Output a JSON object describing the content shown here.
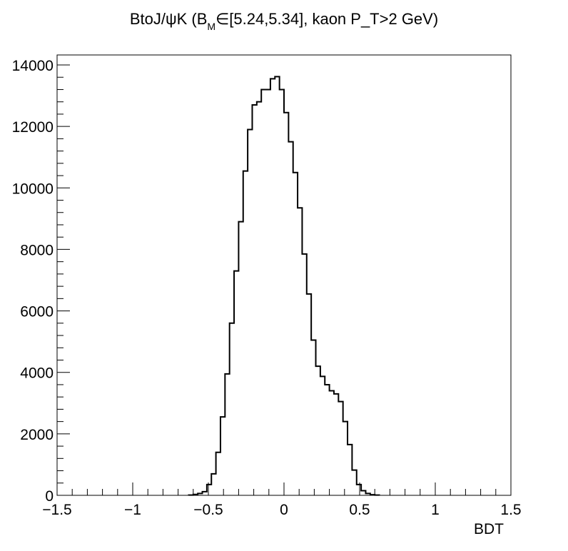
{
  "title": {
    "prefix": "BtoJ/ψK (B",
    "subscript": "M",
    "suffix": "∈[5.24,5.34], kaon P_T>2 GeV)"
  },
  "chart_data": {
    "type": "histogram",
    "title": "BtoJ/ψK (B_M∈[5.24,5.34], kaon P_T>2 GeV)",
    "xlabel": "BDT",
    "ylabel": "",
    "xlim": [
      -1.5,
      1.5
    ],
    "ylim": [
      0,
      14000
    ],
    "bin_width": 0.03,
    "x_ticks": [
      "−1.5",
      "−1",
      "−0.5",
      "0",
      "0.5",
      "1",
      "1.5"
    ],
    "y_ticks": [
      "0",
      "2000",
      "4000",
      "6000",
      "8000",
      "10000",
      "12000",
      "14000"
    ],
    "bins": [
      {
        "x0": -0.63,
        "x1": -0.6,
        "y": 10
      },
      {
        "x0": -0.6,
        "x1": -0.57,
        "y": 30
      },
      {
        "x0": -0.57,
        "x1": -0.54,
        "y": 60
      },
      {
        "x0": -0.54,
        "x1": -0.51,
        "y": 120
      },
      {
        "x0": -0.51,
        "x1": -0.48,
        "y": 350
      },
      {
        "x0": -0.48,
        "x1": -0.45,
        "y": 700
      },
      {
        "x0": -0.45,
        "x1": -0.42,
        "y": 1400
      },
      {
        "x0": -0.42,
        "x1": -0.39,
        "y": 2550
      },
      {
        "x0": -0.39,
        "x1": -0.36,
        "y": 3950
      },
      {
        "x0": -0.36,
        "x1": -0.33,
        "y": 5600
      },
      {
        "x0": -0.33,
        "x1": -0.3,
        "y": 7300
      },
      {
        "x0": -0.3,
        "x1": -0.27,
        "y": 8900
      },
      {
        "x0": -0.27,
        "x1": -0.24,
        "y": 10550
      },
      {
        "x0": -0.24,
        "x1": -0.21,
        "y": 11900
      },
      {
        "x0": -0.21,
        "x1": -0.18,
        "y": 12700
      },
      {
        "x0": -0.18,
        "x1": -0.15,
        "y": 12800
      },
      {
        "x0": -0.15,
        "x1": -0.12,
        "y": 13200
      },
      {
        "x0": -0.12,
        "x1": -0.09,
        "y": 13200
      },
      {
        "x0": -0.09,
        "x1": -0.06,
        "y": 13550
      },
      {
        "x0": -0.06,
        "x1": -0.03,
        "y": 13620
      },
      {
        "x0": -0.03,
        "x1": 0.0,
        "y": 13200
      },
      {
        "x0": 0.0,
        "x1": 0.03,
        "y": 12450
      },
      {
        "x0": 0.03,
        "x1": 0.06,
        "y": 11500
      },
      {
        "x0": 0.06,
        "x1": 0.09,
        "y": 10500
      },
      {
        "x0": 0.09,
        "x1": 0.12,
        "y": 9350
      },
      {
        "x0": 0.12,
        "x1": 0.15,
        "y": 7850
      },
      {
        "x0": 0.15,
        "x1": 0.18,
        "y": 6550
      },
      {
        "x0": 0.18,
        "x1": 0.21,
        "y": 5050
      },
      {
        "x0": 0.21,
        "x1": 0.24,
        "y": 4200
      },
      {
        "x0": 0.24,
        "x1": 0.27,
        "y": 3870
      },
      {
        "x0": 0.27,
        "x1": 0.3,
        "y": 3600
      },
      {
        "x0": 0.3,
        "x1": 0.33,
        "y": 3400
      },
      {
        "x0": 0.33,
        "x1": 0.36,
        "y": 3300
      },
      {
        "x0": 0.36,
        "x1": 0.39,
        "y": 3050
      },
      {
        "x0": 0.39,
        "x1": 0.42,
        "y": 2400
      },
      {
        "x0": 0.42,
        "x1": 0.45,
        "y": 1650
      },
      {
        "x0": 0.45,
        "x1": 0.48,
        "y": 820
      },
      {
        "x0": 0.48,
        "x1": 0.51,
        "y": 350
      },
      {
        "x0": 0.51,
        "x1": 0.54,
        "y": 150
      },
      {
        "x0": 0.54,
        "x1": 0.57,
        "y": 60
      },
      {
        "x0": 0.57,
        "x1": 0.6,
        "y": 20
      },
      {
        "x0": 0.6,
        "x1": 0.63,
        "y": 8
      }
    ],
    "grid": false,
    "line_color": "#000000"
  }
}
